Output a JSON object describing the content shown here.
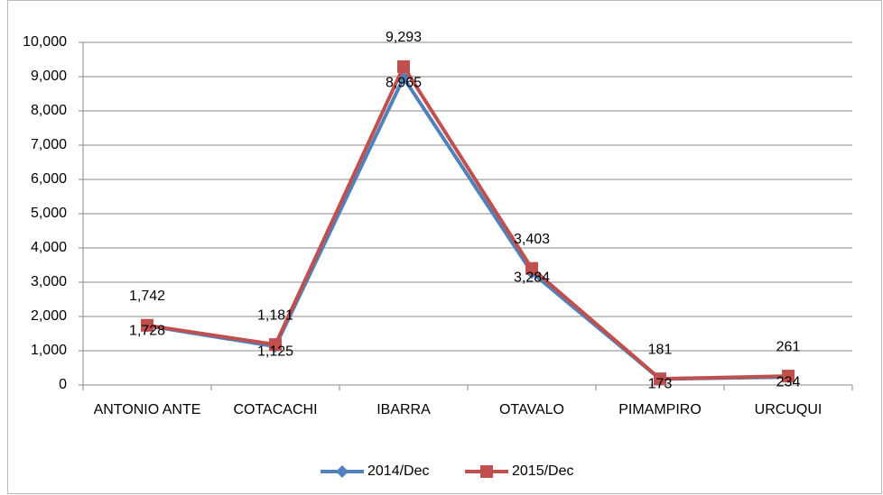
{
  "chart_data": {
    "type": "line",
    "categories": [
      "ANTONIO ANTE",
      "COTACACHI",
      "IBARRA",
      "OTAVALO",
      "PIMAMPIRO",
      "URCUQUI"
    ],
    "series": [
      {
        "name": "2014/Dec",
        "color": "#4f81bd",
        "marker": "diamond",
        "values": [
          1728,
          1125,
          8965,
          3284,
          173,
          234
        ],
        "value_labels": [
          "1,728",
          "1,125",
          "8,965",
          "3,284",
          "173",
          "234"
        ]
      },
      {
        "name": "2015/Dec",
        "color": "#c0504d",
        "marker": "square",
        "values": [
          1742,
          1181,
          9293,
          3403,
          181,
          261
        ],
        "value_labels": [
          "1,742",
          "1,181",
          "9,293",
          "3,403",
          "181",
          "261"
        ]
      }
    ],
    "ylim": [
      0,
      10000
    ],
    "yticks": [
      0,
      {
        "value": 1000,
        "label": "1,000"
      },
      {
        "value": 2000,
        "label": "2,000"
      },
      {
        "value": 3000,
        "label": "3,000"
      },
      {
        "value": 4000,
        "label": "4,000"
      },
      {
        "value": 5000,
        "label": "5,000"
      },
      {
        "value": 6000,
        "label": "6,000"
      },
      {
        "value": 7000,
        "label": "7,000"
      },
      {
        "value": 8000,
        "label": "8,000"
      },
      {
        "value": 9000,
        "label": "9,000"
      },
      {
        "value": 10000,
        "label": "10,000"
      }
    ],
    "grid": true,
    "legend": "bottom"
  }
}
